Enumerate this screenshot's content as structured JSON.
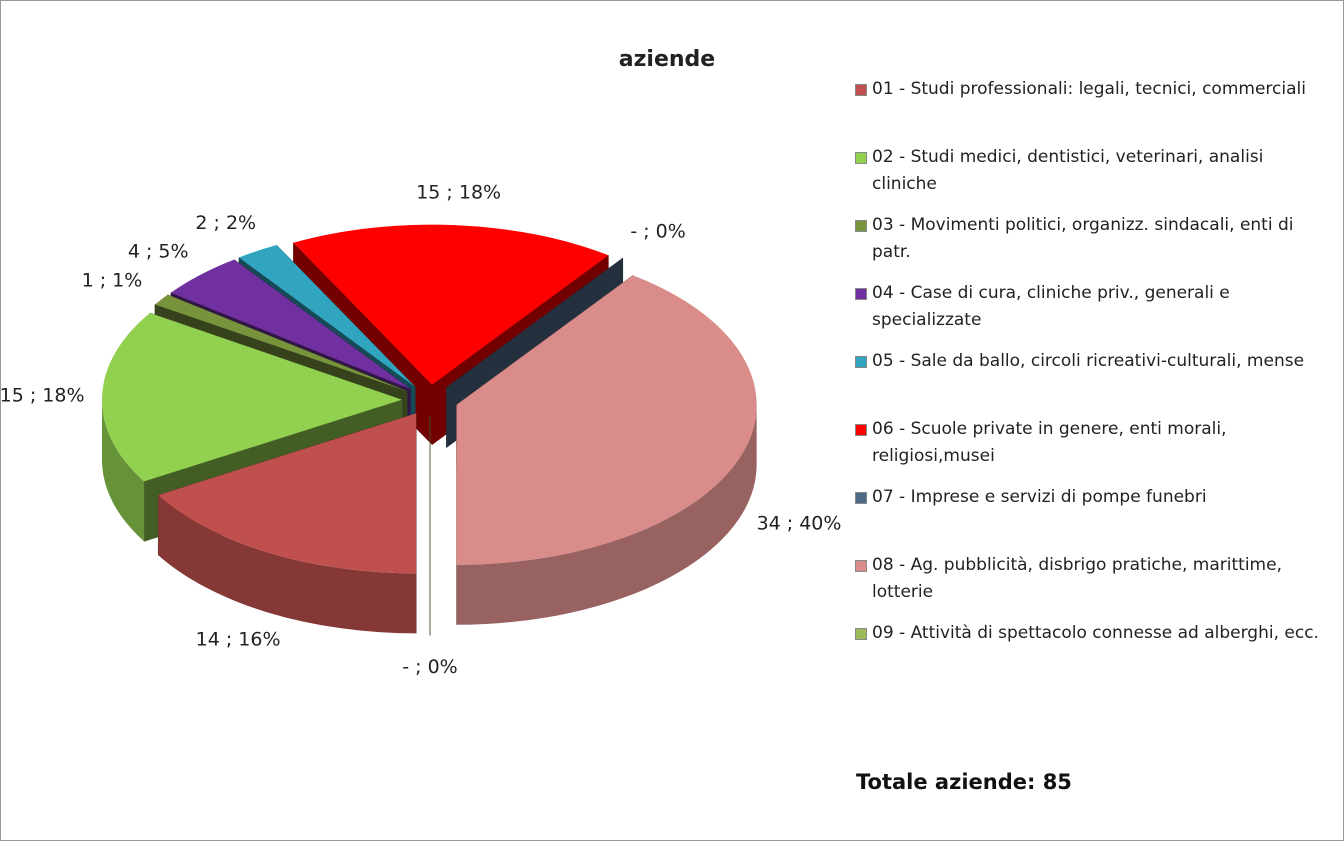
{
  "chart_data": {
    "type": "pie3d",
    "title": "aziende",
    "categories": [
      "01 - Studi professionali: legali, tecnici, commerciali",
      "02 - Studi medici, dentistici, veterinari, analisi cliniche",
      "03 - Movimenti politici, organizz. sindacali, enti di patr.",
      "04 - Case di cura, cliniche priv., generali e specializzate",
      "05 - Sale da ballo, circoli ricreativi-culturali, mense",
      "06 - Scuole private in genere, enti morali, religiosi,musei",
      "07 - Imprese e servizi di pompe funebri",
      "08 - Ag. pubblicità, disbrigo pratiche, marittime, lotterie",
      "09 - Attività di spettacolo connesse ad alberghi, ecc."
    ],
    "values": [
      14,
      15,
      1,
      4,
      2,
      15,
      0,
      34,
      0
    ],
    "value_labels": [
      "14 ; 16%",
      "15 ; 18%",
      "1 ; 1%",
      "4 ; 5%",
      "2 ; 2%",
      "15 ; 18%",
      "-   ; 0%",
      "34 ; 40%",
      "-   ; 0%"
    ],
    "colors": [
      "#c0504d",
      "#92d050",
      "#77933c",
      "#7030a0",
      "#31a5c0",
      "#ff0000",
      "#4f6b8a",
      "#d98c8a",
      "#9bbb59"
    ],
    "annotation": "Totale aziende: 85"
  }
}
